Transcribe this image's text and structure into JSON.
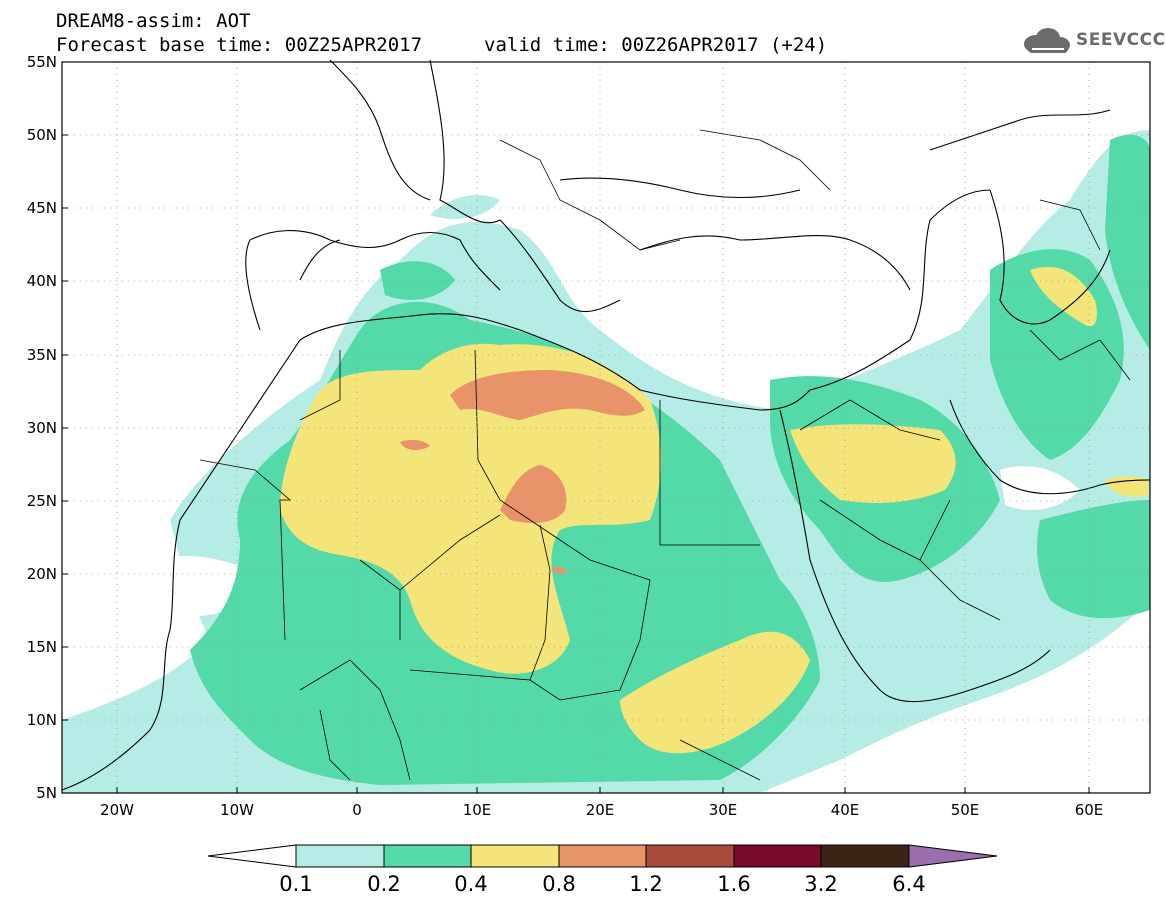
{
  "title_line1": "DREAM8-assim: AOT",
  "title_line2": "Forecast base time: 00Z25APR2017",
  "valid_line": "valid time: 00Z26APR2017 (+24)",
  "logo_text": "SEEVCCC",
  "map": {
    "lat_labels": [
      "55N",
      "50N",
      "45N",
      "40N",
      "35N",
      "30N",
      "25N",
      "20N",
      "15N",
      "10N",
      "5N"
    ],
    "lon_labels": [
      "20W",
      "10W",
      "0",
      "10E",
      "20E",
      "30E",
      "40E",
      "50E",
      "60E"
    ]
  },
  "colorbar": {
    "labels": [
      "0.1",
      "0.2",
      "0.4",
      "0.8",
      "1.2",
      "1.6",
      "3.2",
      "6.4"
    ],
    "colors": {
      "c01_02": "#b5ede6",
      "c02_04": "#54d9a9",
      "c04_08": "#f3e579",
      "c08_12": "#e8936a",
      "c12_16": "#a74c3c",
      "c16_32": "#7a0a2a",
      "c32_64": "#3b2415",
      "c64_up": "#9b6fae"
    }
  }
}
